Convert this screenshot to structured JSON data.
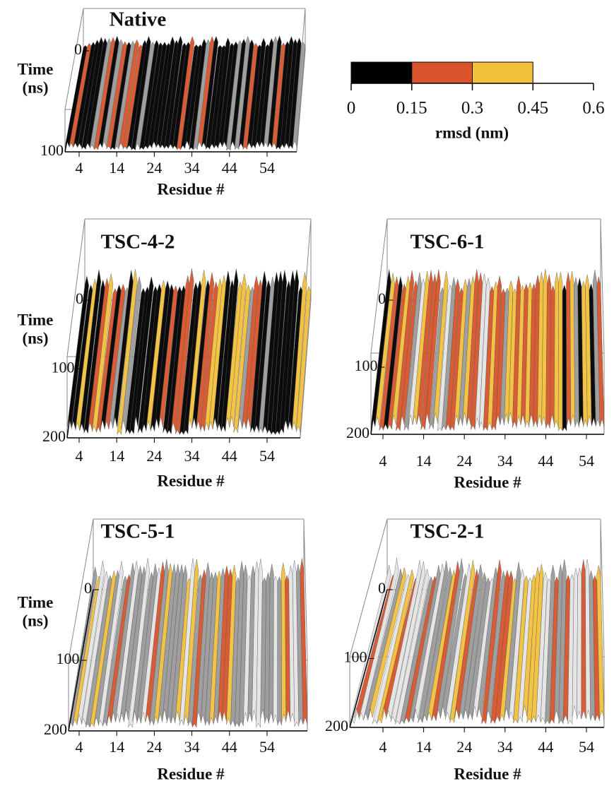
{
  "colorbar": {
    "label": "rmsd (nm)",
    "lim": [
      0,
      0.6
    ],
    "ticks": [
      0,
      0.15,
      0.3,
      0.45,
      0.6
    ],
    "bounds": [
      0,
      0.15,
      0.3,
      0.45
    ],
    "colors": [
      "#000000",
      "#d9542a",
      "#f3c03c"
    ]
  },
  "panels": [
    {
      "title": "Native",
      "x_label": "Residue #",
      "y_label": [
        "Time",
        "(ns)"
      ],
      "xticks": [
        4,
        14,
        24,
        34,
        44,
        54
      ],
      "ylim": [
        0,
        100
      ],
      "yticks": [
        0,
        100
      ]
    },
    {
      "title": "TSC-4-2",
      "x_label": "Residue #",
      "y_label": [
        "Time",
        "(ns)"
      ],
      "xticks": [
        4,
        14,
        24,
        34,
        44,
        54
      ],
      "ylim": [
        0,
        200
      ],
      "yticks": [
        0,
        100,
        200
      ]
    },
    {
      "title": "TSC-6-1",
      "x_label": "Residue #",
      "xticks": [
        4,
        14,
        24,
        34,
        44,
        54
      ],
      "ylim": [
        0,
        200
      ],
      "yticks": [
        0,
        100,
        200
      ]
    },
    {
      "title": "TSC-5-1",
      "x_label": "Residue #",
      "y_label": [
        "Time",
        "(ns)"
      ],
      "xticks": [
        4,
        14,
        24,
        34,
        44,
        54
      ],
      "ylim": [
        0,
        200
      ],
      "yticks": [
        0,
        100,
        200
      ]
    },
    {
      "title": "TSC-2-1",
      "x_label": "Residue #",
      "xticks": [
        4,
        14,
        24,
        34,
        44,
        54
      ],
      "ylim": [
        0,
        200
      ],
      "yticks": [
        0,
        100,
        200
      ]
    }
  ]
}
